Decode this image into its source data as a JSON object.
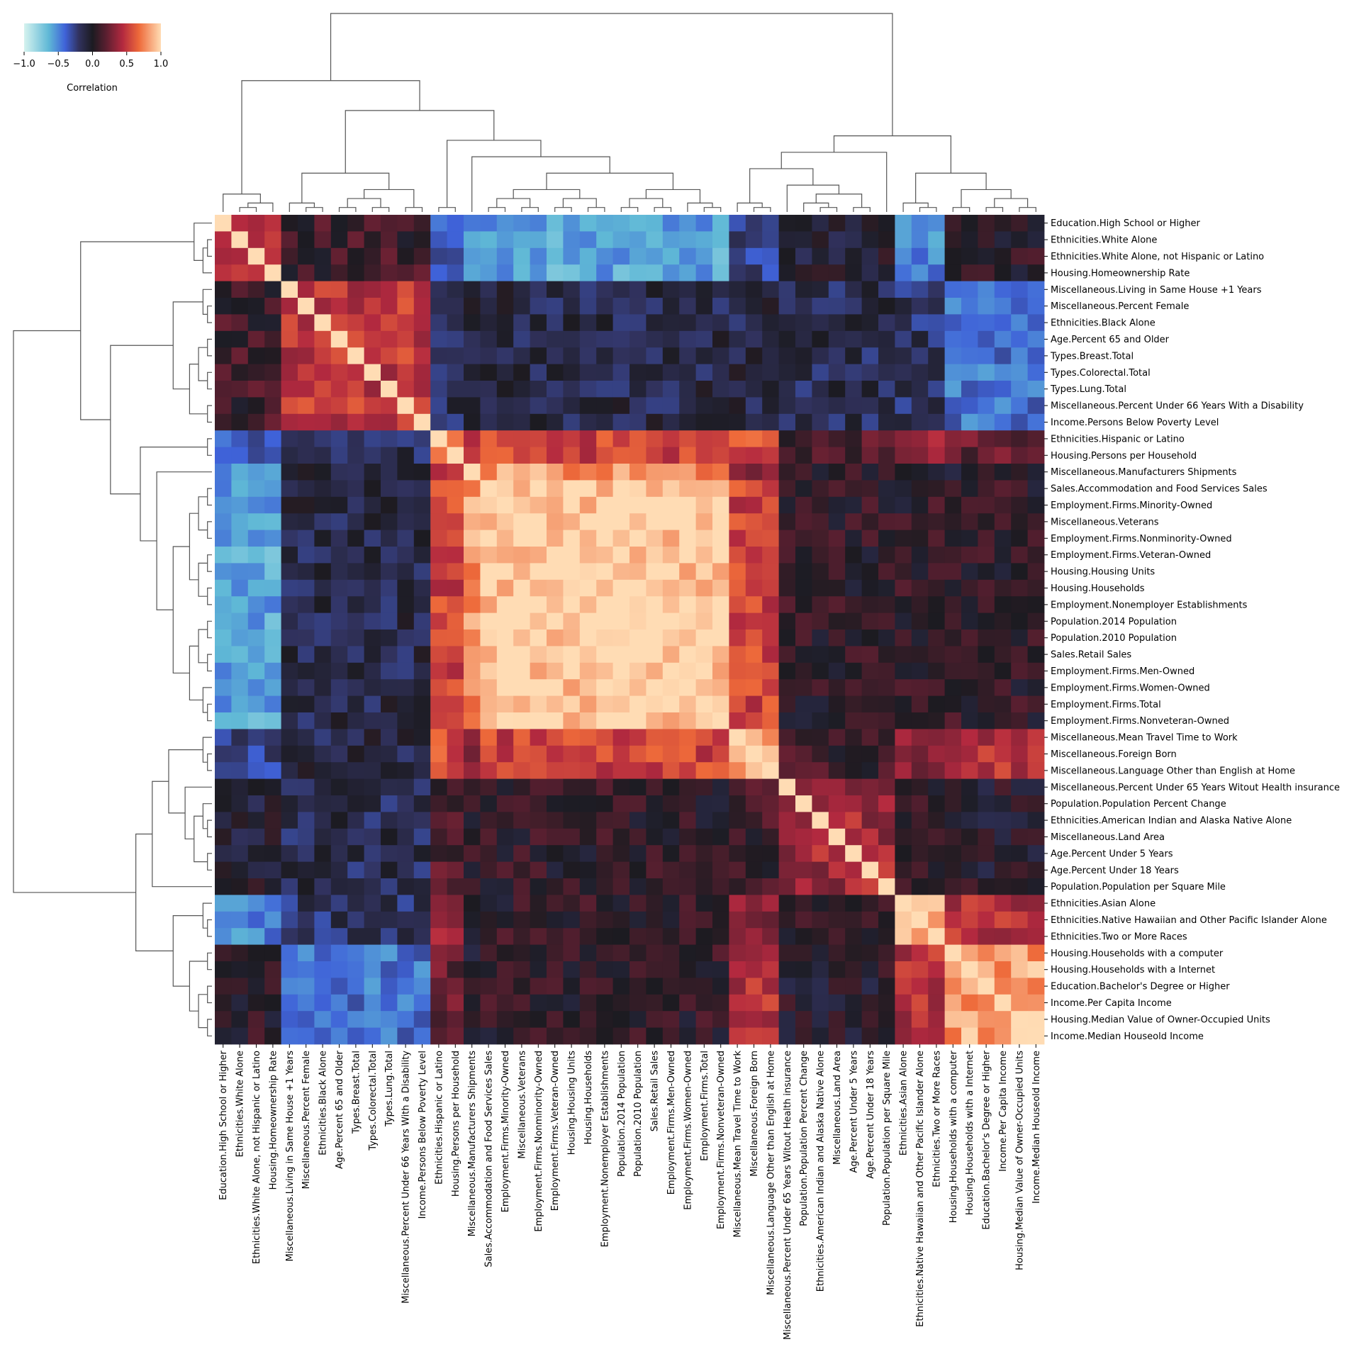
{
  "chart_data": {
    "type": "heatmap",
    "subtype": "clustered correlation heatmap with dendrograms",
    "colorbar": {
      "label": "Correlation",
      "ticks": [
        -1.0,
        -0.5,
        0.0,
        0.5,
        1.0
      ],
      "tick_labels": [
        "−1.0",
        "−0.5",
        "0.0",
        "0.5",
        "1.0"
      ],
      "range": [
        -1,
        1
      ],
      "colormap": "icefire",
      "position": "top-left"
    },
    "labels": [
      "Education.High School or Higher",
      "Ethnicities.White Alone",
      "Ethnicities.White Alone, not Hispanic or Latino",
      "Housing.Homeownership Rate",
      "Miscellaneous.Living in Same House +1 Years",
      "Miscellaneous.Percent Female",
      "Ethnicities.Black Alone",
      "Age.Percent 65 and Older",
      "Types.Breast.Total",
      "Types.Colorectal.Total",
      "Types.Lung.Total",
      "Miscellaneous.Percent Under 66 Years With a Disability",
      "Income.Persons Below Poverty Level",
      "Ethnicities.Hispanic or Latino",
      "Housing.Persons per Household",
      "Miscellaneous.Manufacturers Shipments",
      "Sales.Accommodation and Food Services Sales",
      "Employment.Firms.Minority-Owned",
      "Miscellaneous.Veterans",
      "Employment.Firms.Nonminority-Owned",
      "Employment.Firms.Veteran-Owned",
      "Housing.Housing Units",
      "Housing.Households",
      "Employment.Nonemployer Establishments",
      "Population.2014 Population",
      "Population.2010 Population",
      "Sales.Retail Sales",
      "Employment.Firms.Men-Owned",
      "Employment.Firms.Women-Owned",
      "Employment.Firms.Total",
      "Employment.Firms.Nonveteran-Owned",
      "Miscellaneous.Mean Travel Time to Work",
      "Miscellaneous.Foreign Born",
      "Miscellaneous.Language Other than English at Home",
      "Miscellaneous.Percent Under 65 Years Witout Health insurance",
      "Population.Population Percent Change",
      "Ethnicities.American Indian and Alaska Native Alone",
      "Miscellaneous.Land Area",
      "Age.Percent Under 5 Years",
      "Age.Percent Under 18 Years",
      "Population.Population per Square Mile",
      "Ethnicities.Asian Alone",
      "Ethnicities.Native Hawaiian and Other Pacific Islander Alone",
      "Ethnicities.Two or More Races",
      "Housing.Households with a computer",
      "Housing.Households with a Internet",
      "Education.Bachelor's Degree or Higher",
      "Income.Per Capita Income",
      "Housing.Median Value of Owner-Occupied Units",
      "Income.Median Houseold Income"
    ],
    "block_values": {
      "groups": {
        "A": [
          0,
          3
        ],
        "B": [
          4,
          12
        ],
        "C": [
          13,
          14
        ],
        "D": [
          15,
          15
        ],
        "E": [
          16,
          30
        ],
        "F": [
          31,
          33
        ],
        "G": [
          34,
          40
        ],
        "H": [
          41,
          43
        ],
        "I": [
          44,
          49
        ]
      },
      "matrix_order": [
        "A",
        "B",
        "C",
        "D",
        "E",
        "F",
        "G",
        "H",
        "I"
      ],
      "matrix": [
        [
          0.55,
          0.1,
          -0.4,
          -0.5,
          -0.6,
          -0.3,
          -0.05,
          -0.5,
          0.05
        ],
        [
          0.1,
          0.5,
          -0.15,
          -0.05,
          -0.12,
          -0.1,
          -0.15,
          -0.2,
          -0.45
        ],
        [
          -0.4,
          -0.15,
          0.85,
          0.5,
          0.55,
          0.6,
          0.15,
          0.35,
          0.2
        ],
        [
          -0.5,
          -0.05,
          0.5,
          1.0,
          0.8,
          0.35,
          0.05,
          -0.05,
          -0.05
        ],
        [
          -0.6,
          -0.12,
          0.55,
          0.8,
          0.97,
          0.55,
          0.05,
          0.05,
          0.05
        ],
        [
          -0.3,
          -0.1,
          0.6,
          0.35,
          0.55,
          0.85,
          0.1,
          0.3,
          0.45
        ],
        [
          -0.05,
          -0.15,
          0.15,
          0.05,
          0.05,
          0.1,
          0.4,
          0.05,
          0.0
        ],
        [
          -0.5,
          -0.2,
          0.35,
          -0.05,
          0.05,
          0.3,
          0.05,
          0.9,
          0.45
        ],
        [
          0.05,
          -0.45,
          0.2,
          -0.05,
          0.05,
          0.45,
          0.0,
          0.45,
          0.85
        ]
      ],
      "diagonal": 1.0
    }
  }
}
